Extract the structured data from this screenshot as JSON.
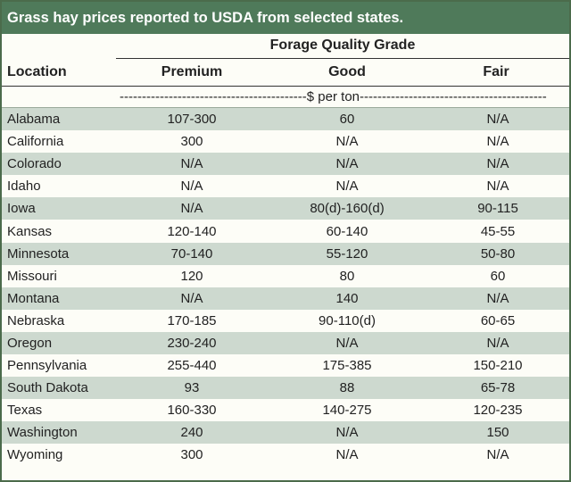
{
  "title": "Grass hay prices reported to USDA from selected states.",
  "header": {
    "group_label": "Forage Quality Grade",
    "location_label": "Location",
    "columns": [
      "Premium",
      "Good",
      "Fair"
    ]
  },
  "units_label": "------------------------------------------$ per ton------------------------------------------",
  "rows": [
    {
      "state": "Alabama",
      "premium": "107-300",
      "good": "60",
      "fair": "N/A"
    },
    {
      "state": "California",
      "premium": "300",
      "good": "N/A",
      "fair": "N/A"
    },
    {
      "state": "Colorado",
      "premium": "N/A",
      "good": "N/A",
      "fair": "N/A"
    },
    {
      "state": "Idaho",
      "premium": "N/A",
      "good": "N/A",
      "fair": "N/A"
    },
    {
      "state": "Iowa",
      "premium": "N/A",
      "good": "80(d)-160(d)",
      "fair": "90-115"
    },
    {
      "state": "Kansas",
      "premium": "120-140",
      "good": "60-140",
      "fair": "45-55"
    },
    {
      "state": "Minnesota",
      "premium": "70-140",
      "good": "55-120",
      "fair": "50-80"
    },
    {
      "state": "Missouri",
      "premium": "120",
      "good": "80",
      "fair": "60"
    },
    {
      "state": "Montana",
      "premium": "N/A",
      "good": "140",
      "fair": "N/A"
    },
    {
      "state": "Nebraska",
      "premium": "170-185",
      "good": "90-110(d)",
      "fair": "60-65"
    },
    {
      "state": "Oregon",
      "premium": "230-240",
      "good": "N/A",
      "fair": "N/A"
    },
    {
      "state": "Pennsylvania",
      "premium": "255-440",
      "good": "175-385",
      "fair": "150-210"
    },
    {
      "state": "South Dakota",
      "premium": "93",
      "good": "88",
      "fair": "65-78"
    },
    {
      "state": "Texas",
      "premium": "160-330",
      "good": "140-275",
      "fair": "120-235"
    },
    {
      "state": "Washington",
      "premium": "240",
      "good": "N/A",
      "fair": "150"
    },
    {
      "state": "Wyoming",
      "premium": "300",
      "good": "N/A",
      "fair": "N/A"
    }
  ],
  "colors": {
    "title_bg": "#4f7a5a",
    "row_shade": "#cdd9cf",
    "row_plain": "#fdfdf7"
  }
}
